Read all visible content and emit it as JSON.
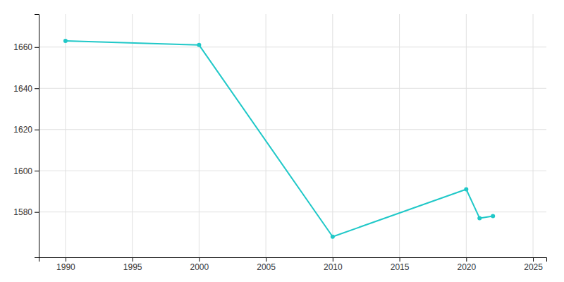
{
  "chart_data": {
    "type": "line",
    "x": [
      1990,
      2000,
      2010,
      2020,
      2021,
      2022
    ],
    "values": [
      1663,
      1661,
      1568,
      1591,
      1577,
      1578
    ],
    "color": "#20c8c8",
    "marker": "circle",
    "xlim": [
      1988,
      2026
    ],
    "ylim": [
      1558,
      1676
    ],
    "xticks": [
      1990,
      1995,
      2000,
      2005,
      2010,
      2015,
      2020,
      2025
    ],
    "yticks": [
      1580,
      1600,
      1620,
      1640,
      1660
    ],
    "grid": true
  }
}
